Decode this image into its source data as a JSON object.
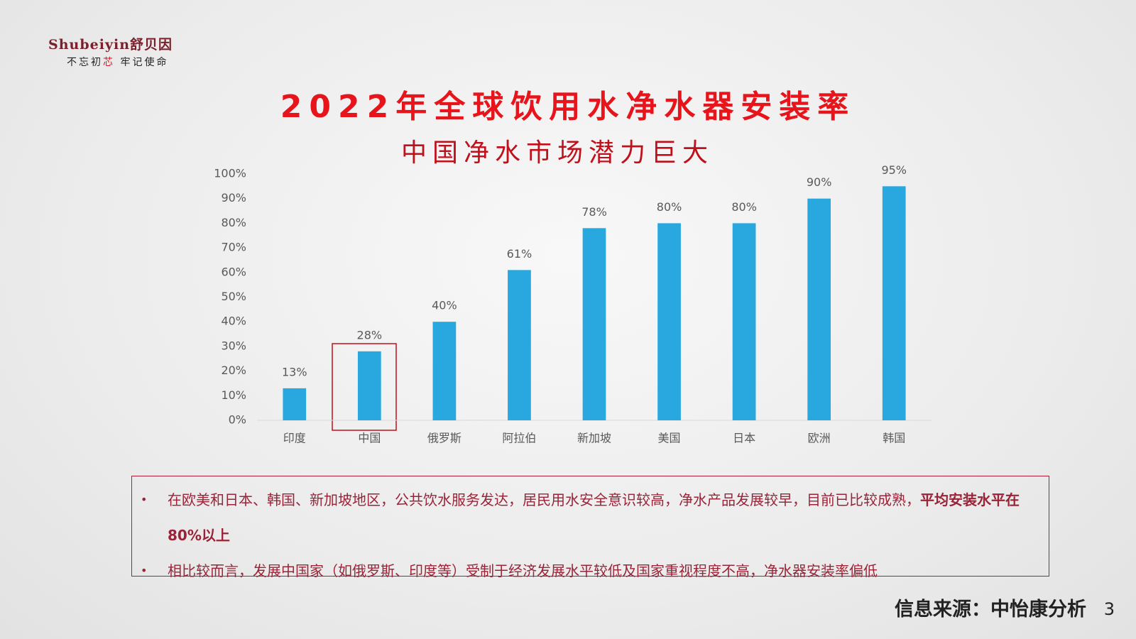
{
  "logo": {
    "brand": "Shubeiyin舒贝因",
    "tagline": [
      "不忘初",
      "芯",
      " 牢记使命"
    ]
  },
  "chart_data": {
    "type": "bar",
    "title": "2022年全球饮用水净水器安装率",
    "subtitle": "中国净水市场潜力巨大",
    "categories": [
      "印度",
      "中国",
      "俄罗斯",
      "阿拉伯",
      "新加坡",
      "美国",
      "日本",
      "欧洲",
      "韩国"
    ],
    "values": [
      13,
      28,
      40,
      61,
      78,
      80,
      80,
      90,
      95
    ],
    "value_labels": [
      "13%",
      "28%",
      "40%",
      "61%",
      "78%",
      "80%",
      "80%",
      "90%",
      "95%"
    ],
    "color": "#29a8e0",
    "ylim": [
      0,
      100
    ],
    "yticks": [
      {
        "value": 0,
        "label": "0%"
      },
      {
        "value": 10,
        "label": "10%"
      },
      {
        "value": 20,
        "label": "20%"
      },
      {
        "value": 30,
        "label": "30%"
      },
      {
        "value": 40,
        "label": "40%"
      },
      {
        "value": 50,
        "label": "50%"
      },
      {
        "value": 60,
        "label": "60%"
      },
      {
        "value": 70,
        "label": "70%"
      },
      {
        "value": 80,
        "label": "80%"
      },
      {
        "value": 90,
        "label": "90%"
      },
      {
        "value": 100,
        "label": "100%"
      }
    ],
    "grid": false
  },
  "notes": [
    {
      "text": "在欧美和日本、韩国、新加坡地区，公共饮水服务发达，居民用水安全意识较高，净水产品发展较早，目前已比较成熟，",
      "bold": "平均安装水平在80%以上"
    },
    {
      "text": "相比较而言，发展中国家（如俄罗斯、印度等）受制于经济发展水平较低及国家重视程度不高，净水器安装率偏低"
    }
  ],
  "source": "信息来源：中怡康分析",
  "page_number": "3"
}
